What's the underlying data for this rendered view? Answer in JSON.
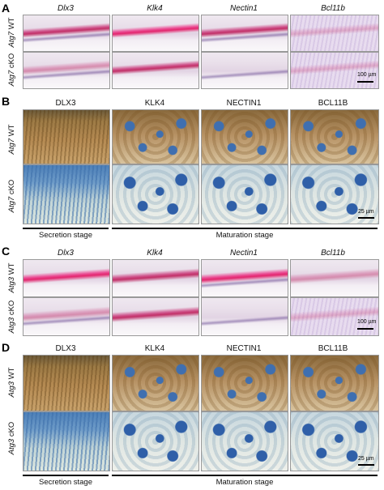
{
  "panels": {
    "A": {
      "letter": "A",
      "columns": [
        "Dlx3",
        "Klk4",
        "Nectin1",
        "Bcl11b"
      ],
      "rows": [
        {
          "gene": "Atg7",
          "genotype": "WT"
        },
        {
          "gene": "Atg7",
          "genotype": "cKO"
        }
      ],
      "scale": "100 µm"
    },
    "B": {
      "letter": "B",
      "columns": [
        "DLX3",
        "KLK4",
        "NECTIN1",
        "BCL11B"
      ],
      "rows": [
        {
          "gene": "Atg7",
          "genotype": "WT"
        },
        {
          "gene": "Atg7",
          "genotype": "cKO"
        }
      ],
      "scale": "25 µm",
      "stages": [
        "Secretion stage",
        "Maturation stage"
      ]
    },
    "C": {
      "letter": "C",
      "columns": [
        "Dlx3",
        "Klk4",
        "Nectin1",
        "Bcl11b"
      ],
      "rows": [
        {
          "gene": "Atg3",
          "genotype": "WT"
        },
        {
          "gene": "Atg3",
          "genotype": "cKO"
        }
      ],
      "scale": "100 µm"
    },
    "D": {
      "letter": "D",
      "columns": [
        "DLX3",
        "KLK4",
        "NECTIN1",
        "BCL11B"
      ],
      "rows": [
        {
          "gene": "Atg3",
          "genotype": "WT"
        },
        {
          "gene": "Atg3",
          "genotype": "cKO"
        }
      ],
      "scale": "25 µm",
      "stages": [
        "Secretion stage",
        "Maturation stage"
      ]
    }
  }
}
